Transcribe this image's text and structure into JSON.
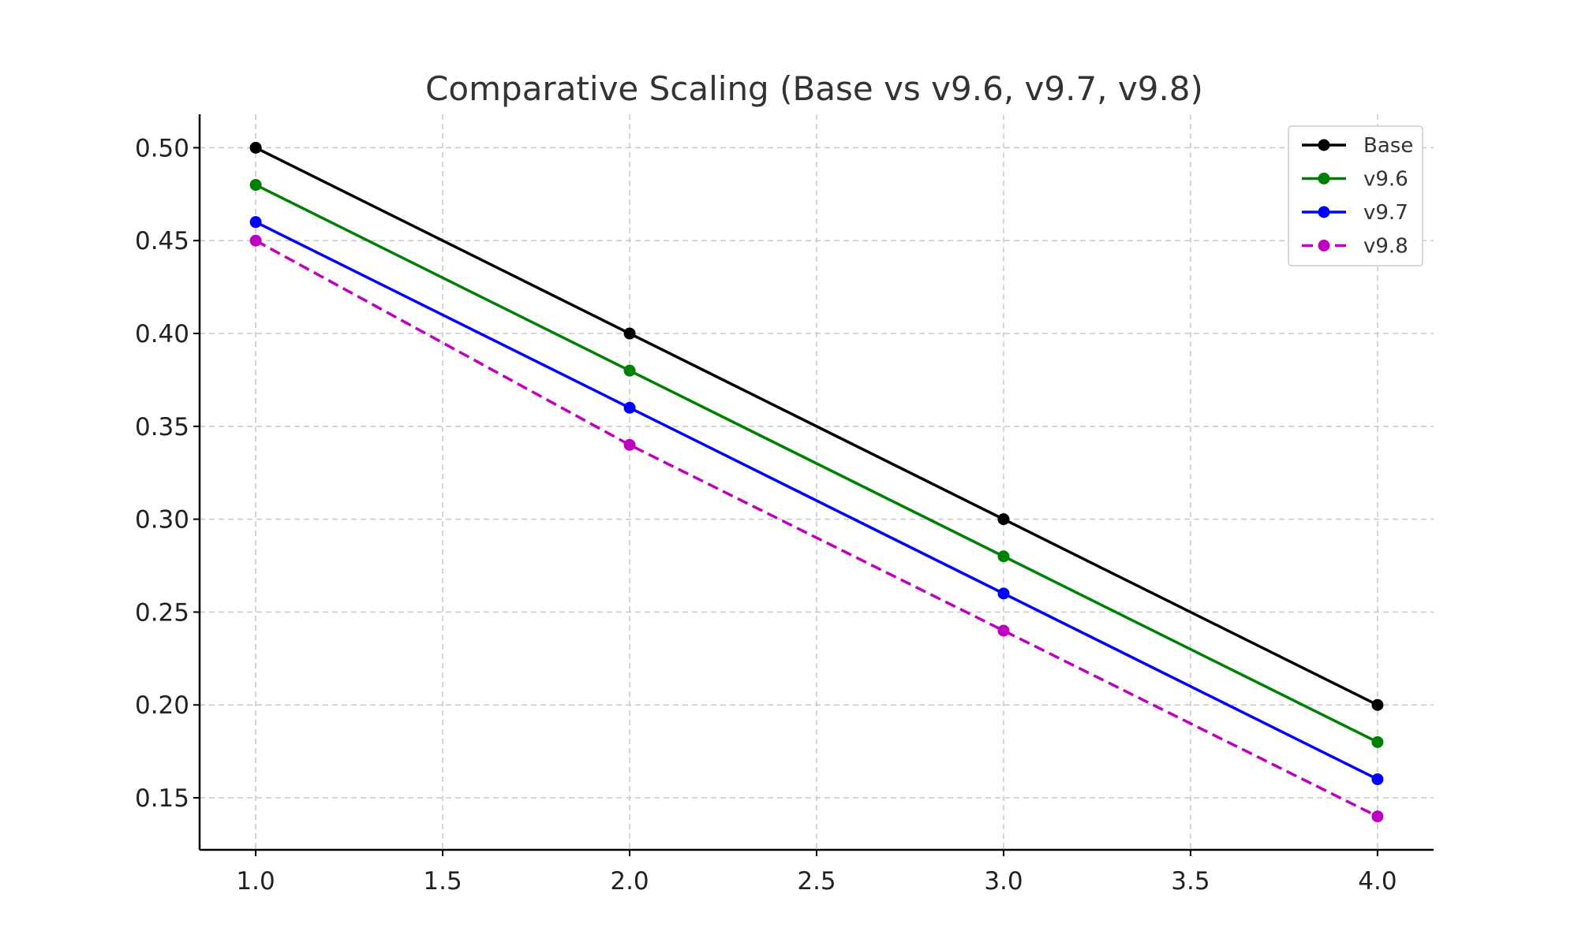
{
  "chart_data": {
    "type": "line",
    "title": "Comparative Scaling (Base vs v9.6, v9.7, v9.8)",
    "xlabel": "",
    "ylabel": "",
    "x": [
      1.0,
      2.0,
      3.0,
      4.0
    ],
    "xlim": [
      0.85,
      4.15
    ],
    "ylim": [
      0.122,
      0.518
    ],
    "xticks": [
      1.0,
      1.5,
      2.0,
      2.5,
      3.0,
      3.5,
      4.0
    ],
    "xtick_labels": [
      "1.0",
      "1.5",
      "2.0",
      "2.5",
      "3.0",
      "3.5",
      "4.0"
    ],
    "yticks": [
      0.15,
      0.2,
      0.25,
      0.3,
      0.35,
      0.4,
      0.45,
      0.5
    ],
    "ytick_labels": [
      "0.15",
      "0.20",
      "0.25",
      "0.30",
      "0.35",
      "0.40",
      "0.45",
      "0.50"
    ],
    "grid": true,
    "legend_position": "top-right",
    "series": [
      {
        "name": "Base",
        "values": [
          0.5,
          0.4,
          0.3,
          0.2
        ],
        "color": "#000000",
        "line_style": "solid",
        "marker": "circle"
      },
      {
        "name": "v9.6",
        "values": [
          0.48,
          0.38,
          0.28,
          0.18
        ],
        "color": "#008000",
        "line_style": "solid",
        "marker": "circle"
      },
      {
        "name": "v9.7",
        "values": [
          0.46,
          0.36,
          0.26,
          0.16
        ],
        "color": "#0000ff",
        "line_style": "solid",
        "marker": "circle"
      },
      {
        "name": "v9.8",
        "values": [
          0.45,
          0.34,
          0.24,
          0.14
        ],
        "color": "#bf00bf",
        "line_style": "dashed",
        "marker": "circle"
      }
    ]
  }
}
